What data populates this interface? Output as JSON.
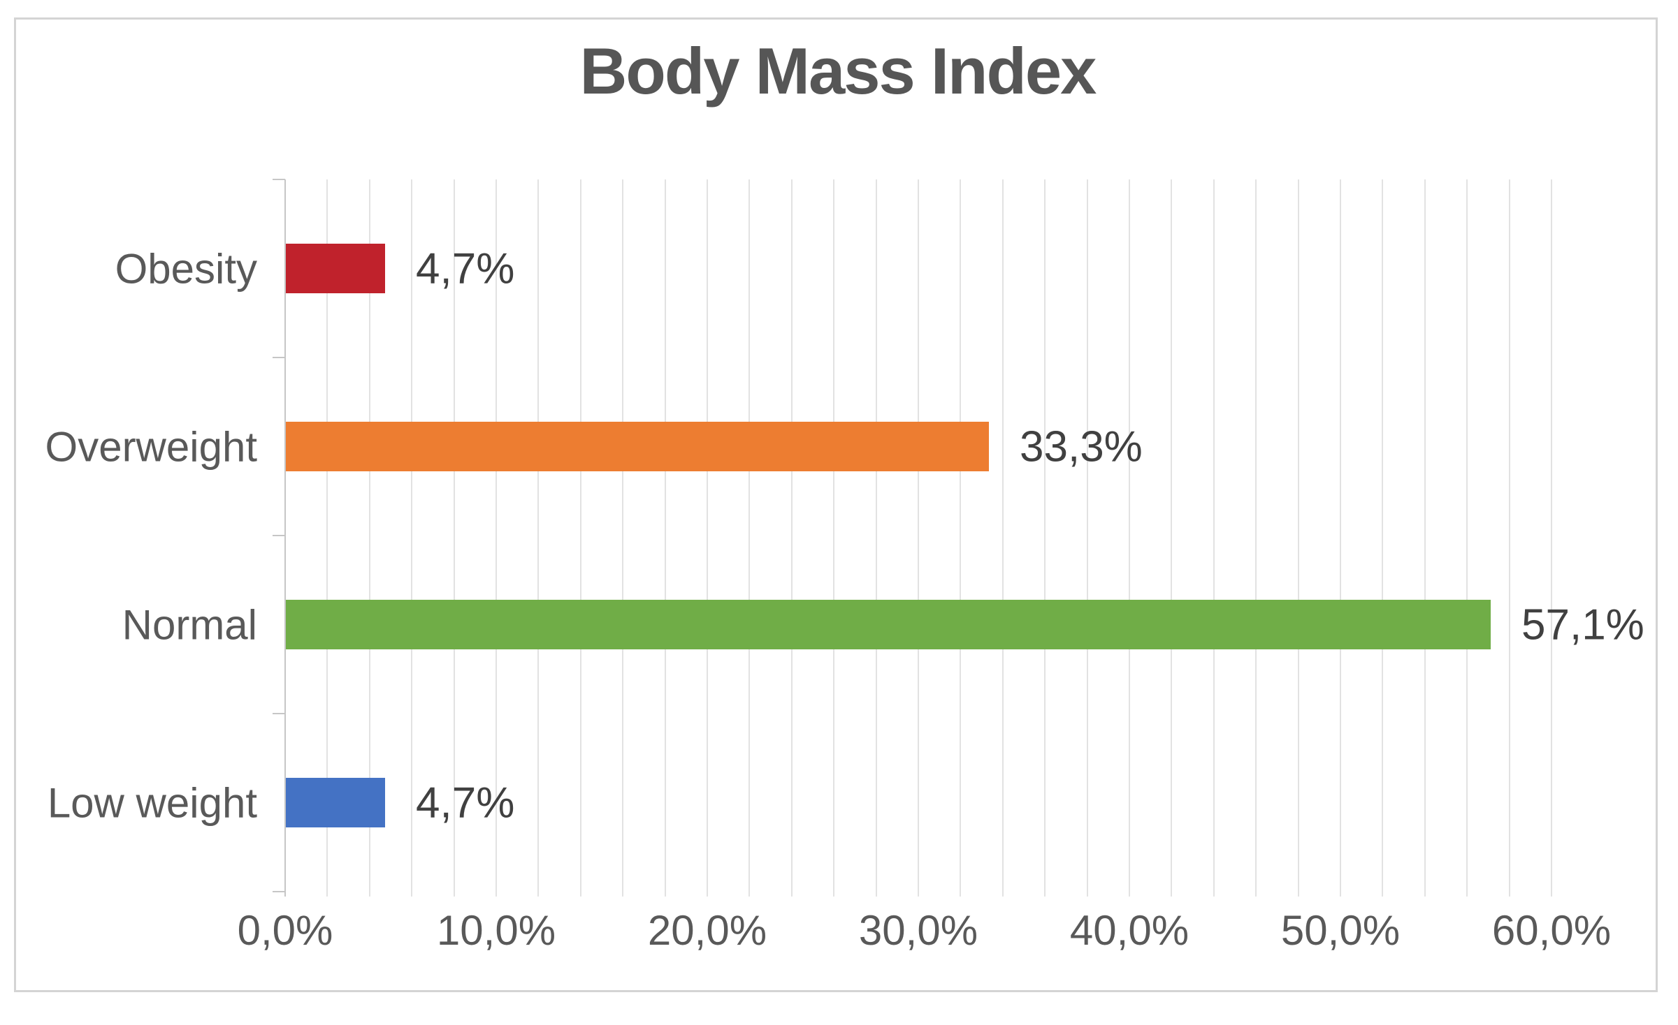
{
  "chart_data": {
    "type": "bar",
    "orientation": "horizontal",
    "title": "Body Mass Index",
    "categories": [
      "Obesity",
      "Overweight",
      "Normal",
      "Low weight"
    ],
    "values": [
      4.7,
      33.3,
      57.1,
      4.7
    ],
    "data_labels": [
      "4,7%",
      "33,3%",
      "57,1%",
      "4,7%"
    ],
    "bar_colors": [
      "#c0222c",
      "#ed7d31",
      "#70ad47",
      "#4472c4"
    ],
    "x_axis": {
      "min": 0,
      "max": 60,
      "major_unit": 10,
      "minor_unit": 2,
      "tick_labels": [
        "0,0%",
        "10,0%",
        "20,0%",
        "30,0%",
        "40,0%",
        "50,0%",
        "60,0%"
      ]
    },
    "grid": true,
    "legend": false
  },
  "colors": {
    "title_text": "#565656",
    "label_text": "#595959",
    "data_label_text": "#404040",
    "gridline": "#e2e2e2",
    "axis": "#c6c6c6",
    "chart_border": "#d4d4d4",
    "background": "#ffffff"
  }
}
